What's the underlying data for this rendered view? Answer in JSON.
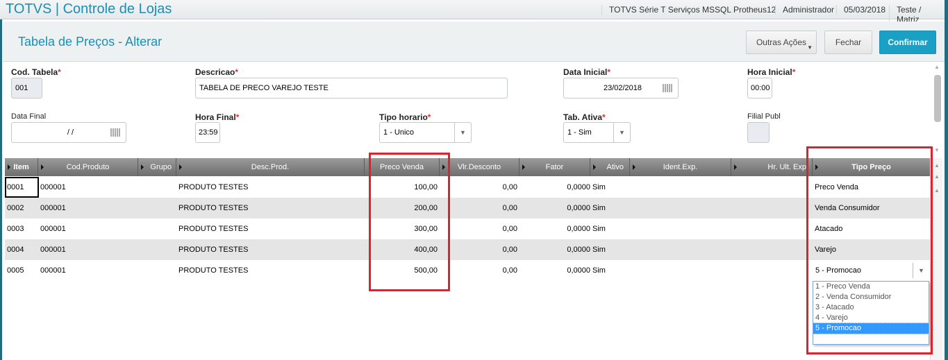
{
  "app": {
    "title": "TOTVS | Controle de Lojas",
    "environment": "TOTVS Série T Serviços MSSQL Protheus12",
    "user": "Administrador",
    "date": "05/03/2018",
    "branch": "Teste / Matriz"
  },
  "page": {
    "title": "Tabela de Preços - Alterar"
  },
  "actions": {
    "other": "Outras Ações",
    "close": "Fechar",
    "confirm": "Confirmar"
  },
  "form": {
    "cod_tabela": {
      "label": "Cod. Tabela",
      "value": "001"
    },
    "descricao": {
      "label": "Descricao",
      "value": "TABELA DE PRECO VAREJO  TESTE"
    },
    "data_inicial": {
      "label": "Data Inicial",
      "value": "23/02/2018"
    },
    "hora_inicial": {
      "label": "Hora Inicial",
      "value": "00:00"
    },
    "data_final": {
      "label": "Data Final",
      "value": "/ /"
    },
    "hora_final": {
      "label": "Hora Final",
      "value": "23:59"
    },
    "tipo_horario": {
      "label": "Tipo horario",
      "value": "1 - Unico"
    },
    "tab_ativa": {
      "label": "Tab. Ativa",
      "value": "1 - Sim"
    },
    "filial_publ": {
      "label": "Filial Publ",
      "value": ""
    },
    "required_mark": "*"
  },
  "grid": {
    "columns": [
      "Item",
      "Cod.Produto",
      "Grupo",
      "Desc.Prod.",
      "Preco Venda",
      "Vlr.Desconto",
      "Fator",
      "Ativo",
      "Ident.Exp.",
      "Hr. Ult. Exp",
      "Tipo Preço"
    ],
    "rows": [
      {
        "item": "0001",
        "cod": "000001",
        "grupo": "",
        "desc": "PRODUTO TESTES",
        "preco": "100,00",
        "desconto": "0,00",
        "fator": "0,0000",
        "ativo": "Sim",
        "ident": "",
        "hr": "",
        "tipo": "Preco Venda"
      },
      {
        "item": "0002",
        "cod": "000001",
        "grupo": "",
        "desc": "PRODUTO TESTES",
        "preco": "200,00",
        "desconto": "0,00",
        "fator": "0,0000",
        "ativo": "Sim",
        "ident": "",
        "hr": "",
        "tipo": "Venda Consumidor"
      },
      {
        "item": "0003",
        "cod": "000001",
        "grupo": "",
        "desc": "PRODUTO TESTES",
        "preco": "300,00",
        "desconto": "0,00",
        "fator": "0,0000",
        "ativo": "Sim",
        "ident": "",
        "hr": "",
        "tipo": "Atacado"
      },
      {
        "item": "0004",
        "cod": "000001",
        "grupo": "",
        "desc": "PRODUTO TESTES",
        "preco": "400,00",
        "desconto": "0,00",
        "fator": "0,0000",
        "ativo": "Sim",
        "ident": "",
        "hr": "",
        "tipo": "Varejo"
      },
      {
        "item": "0005",
        "cod": "000001",
        "grupo": "",
        "desc": "PRODUTO TESTES",
        "preco": "500,00",
        "desconto": "0,00",
        "fator": "0,0000",
        "ativo": "Sim",
        "ident": "",
        "hr": "",
        "tipo": "5 - Promocao"
      }
    ]
  },
  "dropdown": {
    "options": [
      "1 - Preco Venda",
      "2 - Venda Consumidor",
      "3 - Atacado",
      "4 - Varejo",
      "5 - Promocao"
    ],
    "selected_index": 4
  },
  "colors": {
    "accent": "#1a8fb3",
    "confirm": "#1aa0c4",
    "highlight": "#e0202a",
    "selection": "#3399ff"
  }
}
